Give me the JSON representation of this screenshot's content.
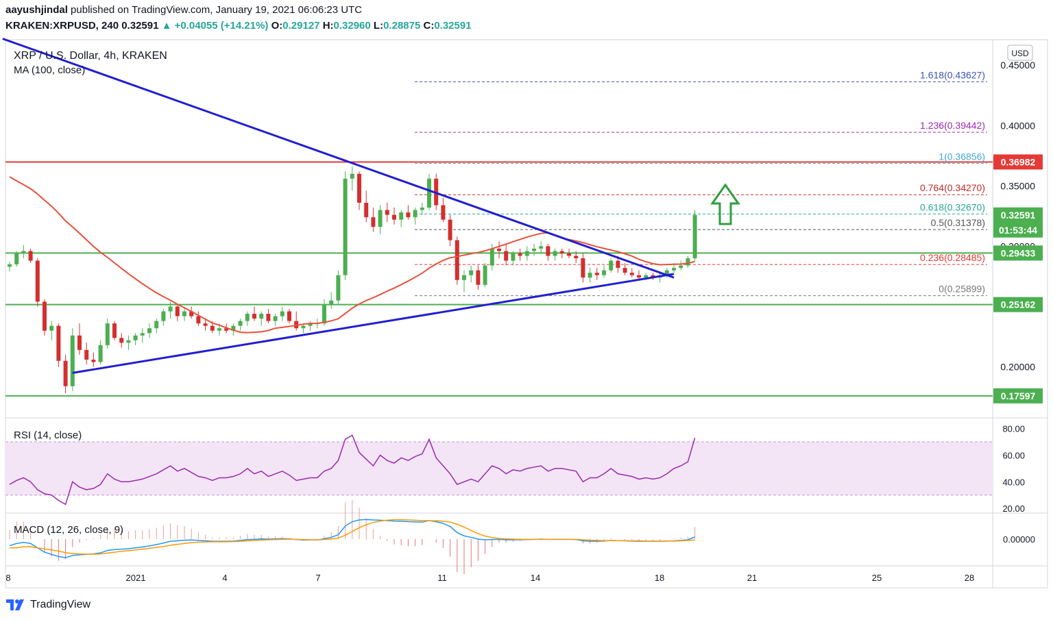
{
  "header": {
    "author": "aayushjindal",
    "published": "published on TradingView.com, January 19, 2021 06:06:23 UTC",
    "symbol": "KRAKEN:XRPUSD, 240",
    "last": "0.32591",
    "arrow": "▲",
    "change": "+0.04055 (+14.21%)",
    "o_label": "O:",
    "o": "0.29127",
    "h_label": "H:",
    "h": "0.32960",
    "l_label": "L:",
    "l": "0.28875",
    "c_label": "C:",
    "c": "0.32591"
  },
  "legend": {
    "title": "XRP / U.S. Dollar, 4h, KRAKEN",
    "ma": "MA (100, close)",
    "rsi": "RSI (14, close)",
    "macd": "MACD (12, 26, close, 9)"
  },
  "currency": "USD",
  "footer": {
    "brand": "TradingView"
  },
  "colors": {
    "trendline": "#1f1fd1",
    "ma": "#e8503a",
    "support": "#4caf50",
    "resistance": "#e53935",
    "bull": "#4caf50",
    "bear": "#d32f2f",
    "rsi": "#9c27b0",
    "macd": "#2196f3",
    "signal": "#ff9800"
  },
  "chart_data": [
    {
      "type": "candlestick",
      "title": "XRP / U.S. Dollar, 4h, KRAKEN",
      "ylim": [
        0.16,
        0.47
      ],
      "yticks": [
        "0.45000",
        "0.40000",
        "0.35000",
        "0.30000",
        "0.20000"
      ],
      "xticks": [
        "8",
        "2021",
        "4",
        "7",
        "11",
        "14",
        "18",
        "21",
        "25",
        "28"
      ],
      "horizontal_levels": [
        {
          "label": "0.36982",
          "value": 0.36982,
          "color": "#e53935"
        },
        {
          "label": "0.29433",
          "value": 0.29433,
          "color": "#4caf50"
        },
        {
          "label": "0.25162",
          "value": 0.25162,
          "color": "#4caf50"
        },
        {
          "label": "0.17597",
          "value": 0.17597,
          "color": "#4caf50"
        }
      ],
      "price_label": {
        "value": 0.32591,
        "text": "0.32591",
        "countdown": "01:53:44"
      },
      "fibonacci": [
        {
          "label": "1.618(0.43627)",
          "value": 0.43627,
          "color": "#3f51b5"
        },
        {
          "label": "1.236(0.39442)",
          "value": 0.39442,
          "color": "#9c27b0"
        },
        {
          "label": "1(0.36856)",
          "value": 0.36856,
          "color": "#3fa9d6"
        },
        {
          "label": "0.764(0.34270)",
          "value": 0.3427,
          "color": "#c62828"
        },
        {
          "label": "0.618(0.32670)",
          "value": 0.3267,
          "color": "#26a69a"
        },
        {
          "label": "0.5(0.31378)",
          "value": 0.31378,
          "color": "#555555"
        },
        {
          "label": "0.236(0.28485)",
          "value": 0.28485,
          "color": "#e53935"
        },
        {
          "label": "0(0.25899)",
          "value": 0.25899,
          "color": "#777777"
        }
      ],
      "ohlc": [
        [
          0.283,
          0.287,
          0.279,
          0.285
        ],
        [
          0.285,
          0.296,
          0.283,
          0.294
        ],
        [
          0.294,
          0.301,
          0.29,
          0.296
        ],
        [
          0.296,
          0.298,
          0.286,
          0.288
        ],
        [
          0.288,
          0.29,
          0.25,
          0.254
        ],
        [
          0.254,
          0.256,
          0.226,
          0.23
        ],
        [
          0.23,
          0.238,
          0.222,
          0.234
        ],
        [
          0.234,
          0.236,
          0.2,
          0.205
        ],
        [
          0.205,
          0.21,
          0.178,
          0.184
        ],
        [
          0.184,
          0.232,
          0.18,
          0.226
        ],
        [
          0.226,
          0.236,
          0.21,
          0.214
        ],
        [
          0.214,
          0.22,
          0.202,
          0.206
        ],
        [
          0.206,
          0.212,
          0.2,
          0.204
        ],
        [
          0.204,
          0.222,
          0.202,
          0.218
        ],
        [
          0.218,
          0.24,
          0.215,
          0.236
        ],
        [
          0.236,
          0.238,
          0.222,
          0.224
        ],
        [
          0.224,
          0.228,
          0.216,
          0.22
        ],
        [
          0.22,
          0.226,
          0.214,
          0.222
        ],
        [
          0.222,
          0.228,
          0.218,
          0.226
        ],
        [
          0.226,
          0.232,
          0.22,
          0.228
        ],
        [
          0.228,
          0.236,
          0.224,
          0.232
        ],
        [
          0.232,
          0.24,
          0.228,
          0.238
        ],
        [
          0.238,
          0.248,
          0.234,
          0.246
        ],
        [
          0.246,
          0.254,
          0.24,
          0.25
        ],
        [
          0.25,
          0.252,
          0.238,
          0.242
        ],
        [
          0.242,
          0.25,
          0.238,
          0.246
        ],
        [
          0.246,
          0.25,
          0.24,
          0.242
        ],
        [
          0.242,
          0.246,
          0.234,
          0.236
        ],
        [
          0.236,
          0.24,
          0.23,
          0.234
        ],
        [
          0.234,
          0.238,
          0.228,
          0.23
        ],
        [
          0.23,
          0.236,
          0.226,
          0.232
        ],
        [
          0.232,
          0.236,
          0.228,
          0.23
        ],
        [
          0.23,
          0.236,
          0.226,
          0.234
        ],
        [
          0.234,
          0.24,
          0.23,
          0.238
        ],
        [
          0.238,
          0.246,
          0.234,
          0.244
        ],
        [
          0.244,
          0.25,
          0.238,
          0.24
        ],
        [
          0.24,
          0.246,
          0.234,
          0.244
        ],
        [
          0.244,
          0.248,
          0.236,
          0.238
        ],
        [
          0.238,
          0.244,
          0.234,
          0.242
        ],
        [
          0.242,
          0.25,
          0.238,
          0.246
        ],
        [
          0.246,
          0.248,
          0.236,
          0.238
        ],
        [
          0.238,
          0.246,
          0.23,
          0.232
        ],
        [
          0.232,
          0.236,
          0.228,
          0.234
        ],
        [
          0.234,
          0.238,
          0.23,
          0.236
        ],
        [
          0.236,
          0.24,
          0.232,
          0.236
        ],
        [
          0.236,
          0.256,
          0.234,
          0.252
        ],
        [
          0.252,
          0.262,
          0.248,
          0.255
        ],
        [
          0.255,
          0.28,
          0.252,
          0.276
        ],
        [
          0.276,
          0.362,
          0.272,
          0.356
        ],
        [
          0.356,
          0.366,
          0.346,
          0.36
        ],
        [
          0.36,
          0.362,
          0.33,
          0.336
        ],
        [
          0.336,
          0.346,
          0.32,
          0.324
        ],
        [
          0.324,
          0.332,
          0.312,
          0.316
        ],
        [
          0.316,
          0.334,
          0.31,
          0.33
        ],
        [
          0.33,
          0.336,
          0.32,
          0.326
        ],
        [
          0.326,
          0.332,
          0.318,
          0.322
        ],
        [
          0.322,
          0.33,
          0.316,
          0.328
        ],
        [
          0.328,
          0.334,
          0.322,
          0.324
        ],
        [
          0.324,
          0.332,
          0.318,
          0.33
        ],
        [
          0.33,
          0.336,
          0.326,
          0.332
        ],
        [
          0.332,
          0.36,
          0.33,
          0.356
        ],
        [
          0.356,
          0.36,
          0.33,
          0.334
        ],
        [
          0.334,
          0.34,
          0.32,
          0.322
        ],
        [
          0.322,
          0.326,
          0.3,
          0.305
        ],
        [
          0.305,
          0.308,
          0.268,
          0.272
        ],
        [
          0.272,
          0.28,
          0.262,
          0.276
        ],
        [
          0.276,
          0.284,
          0.27,
          0.28
        ],
        [
          0.28,
          0.284,
          0.264,
          0.268
        ],
        [
          0.268,
          0.286,
          0.266,
          0.284
        ],
        [
          0.284,
          0.302,
          0.28,
          0.298
        ],
        [
          0.298,
          0.304,
          0.29,
          0.296
        ],
        [
          0.296,
          0.302,
          0.284,
          0.288
        ],
        [
          0.288,
          0.296,
          0.284,
          0.294
        ],
        [
          0.294,
          0.298,
          0.288,
          0.292
        ],
        [
          0.292,
          0.3,
          0.288,
          0.296
        ],
        [
          0.296,
          0.302,
          0.292,
          0.298
        ],
        [
          0.298,
          0.304,
          0.294,
          0.3
        ],
        [
          0.3,
          0.302,
          0.288,
          0.292
        ],
        [
          0.292,
          0.298,
          0.288,
          0.296
        ],
        [
          0.296,
          0.298,
          0.29,
          0.294
        ],
        [
          0.294,
          0.298,
          0.29,
          0.292
        ],
        [
          0.292,
          0.296,
          0.286,
          0.29
        ],
        [
          0.29,
          0.294,
          0.27,
          0.274
        ],
        [
          0.274,
          0.282,
          0.27,
          0.278
        ],
        [
          0.278,
          0.282,
          0.272,
          0.276
        ],
        [
          0.276,
          0.284,
          0.274,
          0.28
        ],
        [
          0.28,
          0.29,
          0.278,
          0.288
        ],
        [
          0.288,
          0.292,
          0.278,
          0.282
        ],
        [
          0.282,
          0.286,
          0.276,
          0.278
        ],
        [
          0.278,
          0.282,
          0.274,
          0.276
        ],
        [
          0.276,
          0.28,
          0.272,
          0.274
        ],
        [
          0.274,
          0.278,
          0.272,
          0.276
        ],
        [
          0.276,
          0.278,
          0.272,
          0.274
        ],
        [
          0.274,
          0.278,
          0.27,
          0.276
        ],
        [
          0.276,
          0.282,
          0.274,
          0.28
        ],
        [
          0.28,
          0.286,
          0.278,
          0.282
        ],
        [
          0.282,
          0.288,
          0.28,
          0.284
        ],
        [
          0.284,
          0.292,
          0.282,
          0.29
        ],
        [
          0.29,
          0.33,
          0.288,
          0.326
        ]
      ]
    },
    {
      "type": "line",
      "title": "RSI (14, close)",
      "ylim": [
        18,
        86
      ],
      "yticks": [
        "80.00",
        "60.00",
        "40.00",
        "20.00"
      ],
      "band": [
        30,
        70
      ],
      "values": [
        38,
        41,
        43,
        40,
        34,
        31,
        30,
        26,
        23,
        40,
        36,
        34,
        35,
        38,
        46,
        42,
        40,
        40,
        41,
        42,
        44,
        46,
        49,
        52,
        48,
        50,
        47,
        44,
        43,
        41,
        43,
        43,
        44,
        46,
        50,
        46,
        48,
        44,
        46,
        48,
        45,
        41,
        42,
        43,
        43,
        48,
        50,
        56,
        72,
        75,
        62,
        57,
        52,
        60,
        56,
        54,
        58,
        56,
        59,
        61,
        72,
        58,
        52,
        46,
        38,
        40,
        42,
        40,
        46,
        52,
        50,
        46,
        49,
        48,
        50,
        51,
        52,
        48,
        50,
        50,
        49,
        48,
        40,
        43,
        43,
        46,
        50,
        46,
        45,
        44,
        42,
        43,
        42,
        43,
        46,
        50,
        52,
        55,
        73
      ]
    },
    {
      "type": "line",
      "title": "MACD (12, 26, close, 9)",
      "ylim": [
        -0.011,
        0.011
      ],
      "yticks": [
        "0.00000"
      ],
      "series": [
        {
          "values": [
            -0.003,
            -0.002,
            -0.0015,
            -0.002,
            -0.004,
            -0.006,
            -0.007,
            -0.008,
            -0.0085,
            -0.0075,
            -0.0072,
            -0.007,
            -0.0068,
            -0.0063,
            -0.0052,
            -0.0048,
            -0.0046,
            -0.0044,
            -0.004,
            -0.0036,
            -0.0031,
            -0.0025,
            -0.0018,
            -0.001,
            -0.0008,
            -0.0005,
            -0.0004,
            -0.0006,
            -0.0008,
            -0.001,
            -0.001,
            -0.001,
            -0.0009,
            -0.0006,
            -0.0002,
            -0.0001,
            0.0001,
            0.0,
            0.0001,
            0.0002,
            0.0001,
            -0.0002,
            -0.0004,
            -0.0004,
            -0.0004,
            0.0002,
            0.0008,
            0.002,
            0.006,
            0.008,
            0.0088,
            0.009,
            0.0088,
            0.0087,
            0.0085,
            0.0083,
            0.0082,
            0.008,
            0.0079,
            0.0078,
            0.0085,
            0.008,
            0.0072,
            0.0058,
            0.003,
            0.0015,
            0.0008,
            0.0,
            -0.0003,
            -0.0002,
            -0.0001,
            -0.0003,
            -0.0003,
            -0.0003,
            -0.0002,
            -0.0001,
            0.0,
            -0.0001,
            -0.0001,
            -0.0001,
            -0.0001,
            -0.0002,
            -0.0008,
            -0.001,
            -0.001,
            -0.0009,
            -0.0006,
            -0.0007,
            -0.0008,
            -0.0009,
            -0.001,
            -0.001,
            -0.001,
            -0.001,
            -0.0009,
            -0.0008,
            -0.0006,
            -0.0003,
            0.001
          ]
        },
        {
          "values": [
            -0.004,
            -0.004,
            -0.0035,
            -0.0035,
            -0.004,
            -0.0045,
            -0.005,
            -0.0055,
            -0.0062,
            -0.0066,
            -0.0068,
            -0.0069,
            -0.0069,
            -0.0068,
            -0.0064,
            -0.006,
            -0.0056,
            -0.0053,
            -0.005,
            -0.0046,
            -0.0042,
            -0.0038,
            -0.0034,
            -0.0028,
            -0.0024,
            -0.002,
            -0.0016,
            -0.0014,
            -0.0013,
            -0.0012,
            -0.0012,
            -0.0012,
            -0.0011,
            -0.001,
            -0.0008,
            -0.0006,
            -0.0004,
            -0.0003,
            -0.0002,
            -0.0001,
            0.0,
            -0.0001,
            -0.0002,
            -0.0003,
            -0.0003,
            -0.0002,
            0.0,
            0.0005,
            0.0018,
            0.0035,
            0.0052,
            0.0066,
            0.0076,
            0.0083,
            0.0087,
            0.0089,
            0.0089,
            0.0088,
            0.0087,
            0.0085,
            0.0085,
            0.0084,
            0.0082,
            0.0078,
            0.0068,
            0.0055,
            0.004,
            0.0025,
            0.0014,
            0.0007,
            0.0003,
            0.0001,
            0.0,
            -0.0001,
            -0.0001,
            -0.0001,
            -0.0001,
            -0.0001,
            -0.0001,
            -0.0001,
            -0.0001,
            -0.0001,
            -0.0003,
            -0.0005,
            -0.0006,
            -0.0007,
            -0.0007,
            -0.0007,
            -0.0007,
            -0.0008,
            -0.0008,
            -0.0009,
            -0.0009,
            -0.0009,
            -0.0009,
            -0.0009,
            -0.0008,
            -0.0006,
            -0.0004
          ]
        }
      ]
    }
  ]
}
